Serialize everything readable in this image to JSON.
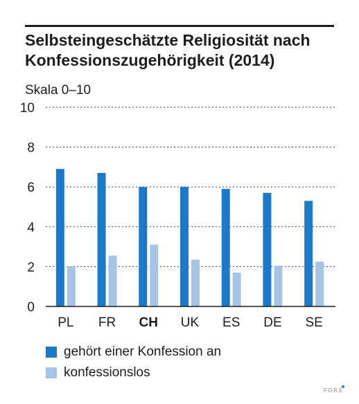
{
  "title": "Selbsteingeschätzte Religiosität nach Konfessionszugehörigkeit (2014)",
  "scale_label": "Skala 0–10",
  "brand": "FORS",
  "chart_data": {
    "type": "bar",
    "title": "Selbsteingeschätzte Religiosität nach Konfessionszugehörigkeit (2014)",
    "ylabel": "Skala 0–10",
    "xlabel": "",
    "ylim": [
      0,
      10
    ],
    "yticks": [
      0,
      2,
      4,
      6,
      8,
      10
    ],
    "grid": true,
    "legend_position": "bottom",
    "categories": [
      "PL",
      "FR",
      "CH",
      "UK",
      "ES",
      "DE",
      "SE"
    ],
    "highlight_category": "CH",
    "series": [
      {
        "name": "gehört einer Konfession an",
        "color": "#1c79c8",
        "values": [
          6.9,
          6.7,
          6.0,
          6.0,
          5.9,
          5.7,
          5.3
        ]
      },
      {
        "name": "konfessionslos",
        "color": "#a7c4e6",
        "values": [
          2.0,
          2.55,
          3.1,
          2.35,
          1.7,
          2.05,
          2.25
        ]
      }
    ]
  }
}
